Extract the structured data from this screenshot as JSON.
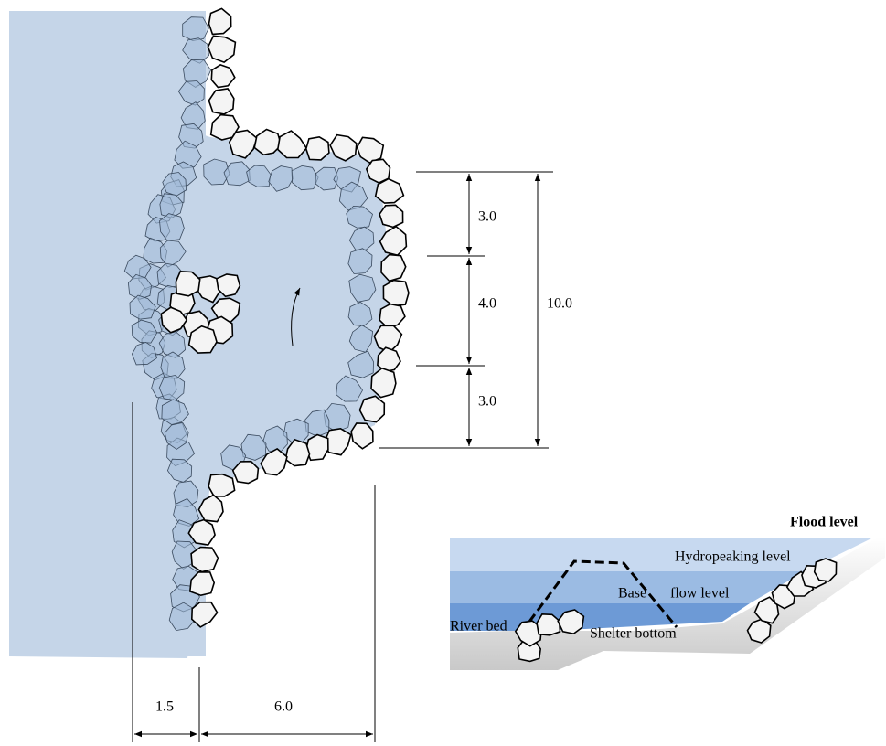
{
  "dimensions": {
    "vertical": [
      "3.0",
      "4.0",
      "3.0"
    ],
    "total": "10.0",
    "bottom": [
      "1.5",
      "6.0"
    ]
  },
  "cross_section": {
    "flood_level": "Flood level",
    "hydropeaking_level": "Hydropeaking level",
    "base": "Base",
    "flow_level": "flow level",
    "river_bed": "River bed",
    "shelter_bottom": "Shelter bottom"
  }
}
